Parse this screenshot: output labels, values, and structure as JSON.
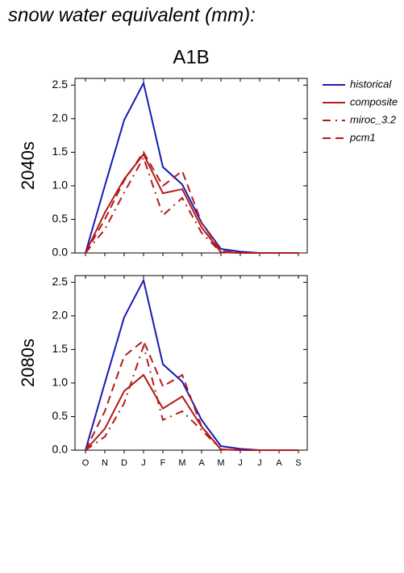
{
  "page": {
    "title": "snow water equivalent (mm):",
    "subtitle": "A1B"
  },
  "chart_data": [
    {
      "type": "line",
      "ylabel": "2040s",
      "ylim": [
        0,
        2.6
      ],
      "yticks": [
        {
          "value": 0,
          "label": "0.0"
        },
        {
          "value": 0.5,
          "label": "0.5"
        },
        {
          "value": 1,
          "label": "1.0"
        },
        {
          "value": 1.5,
          "label": "1.5"
        },
        {
          "value": 2,
          "label": "2.0"
        },
        {
          "value": 2.5,
          "label": "2.5"
        }
      ],
      "legend": "right",
      "series": [
        {
          "name": "historical",
          "color": "#1a1ab4",
          "dash": "none",
          "values": [
            0,
            1.0,
            1.98,
            2.53,
            1.28,
            1.02,
            0.45,
            0.06,
            0.02,
            0,
            0,
            0
          ]
        },
        {
          "name": "composite",
          "color": "#b41a1a",
          "dash": "none",
          "values": [
            0,
            0.6,
            1.1,
            1.47,
            0.89,
            0.95,
            0.38,
            0.01,
            0,
            0,
            0,
            0
          ]
        },
        {
          "name": "miroc_3.2",
          "color": "#b41a1a",
          "dash": "10,6,2,6",
          "values": [
            0,
            0.35,
            0.9,
            1.42,
            0.56,
            0.82,
            0.3,
            0.01,
            0,
            0,
            0,
            0
          ]
        },
        {
          "name": "pcm1",
          "color": "#b41a1a",
          "dash": "10,6",
          "values": [
            0,
            0.5,
            1.08,
            1.5,
            1.0,
            1.22,
            0.45,
            0.03,
            0,
            0,
            0,
            0
          ]
        }
      ]
    },
    {
      "type": "line",
      "ylabel": "2080s",
      "ylim": [
        0,
        2.6
      ],
      "yticks": [
        {
          "value": 0,
          "label": "0.0"
        },
        {
          "value": 0.5,
          "label": "0.5"
        },
        {
          "value": 1,
          "label": "1.0"
        },
        {
          "value": 1.5,
          "label": "1.5"
        },
        {
          "value": 2,
          "label": "2.0"
        },
        {
          "value": 2.5,
          "label": "2.5"
        }
      ],
      "categories": [
        "O",
        "N",
        "D",
        "J",
        "F",
        "M",
        "A",
        "M",
        "J",
        "J",
        "A",
        "S"
      ],
      "series": [
        {
          "color": "#1a1ab4",
          "dash": "none",
          "values": [
            0,
            1.0,
            1.98,
            2.53,
            1.28,
            1.02,
            0.45,
            0.06,
            0.02,
            0,
            0,
            0
          ]
        },
        {
          "color": "#b41a1a",
          "dash": "none",
          "values": [
            0,
            0.32,
            0.88,
            1.12,
            0.62,
            0.8,
            0.35,
            0.01,
            0,
            0,
            0,
            0
          ]
        },
        {
          "color": "#b41a1a",
          "dash": "10,6,2,6",
          "values": [
            0,
            0.2,
            0.7,
            1.55,
            0.45,
            0.58,
            0.3,
            0.01,
            0,
            0,
            0,
            0
          ]
        },
        {
          "color": "#b41a1a",
          "dash": "10,6",
          "values": [
            0,
            0.58,
            1.4,
            1.63,
            0.95,
            1.12,
            0.35,
            0.01,
            0,
            0,
            0,
            0
          ]
        }
      ]
    }
  ]
}
